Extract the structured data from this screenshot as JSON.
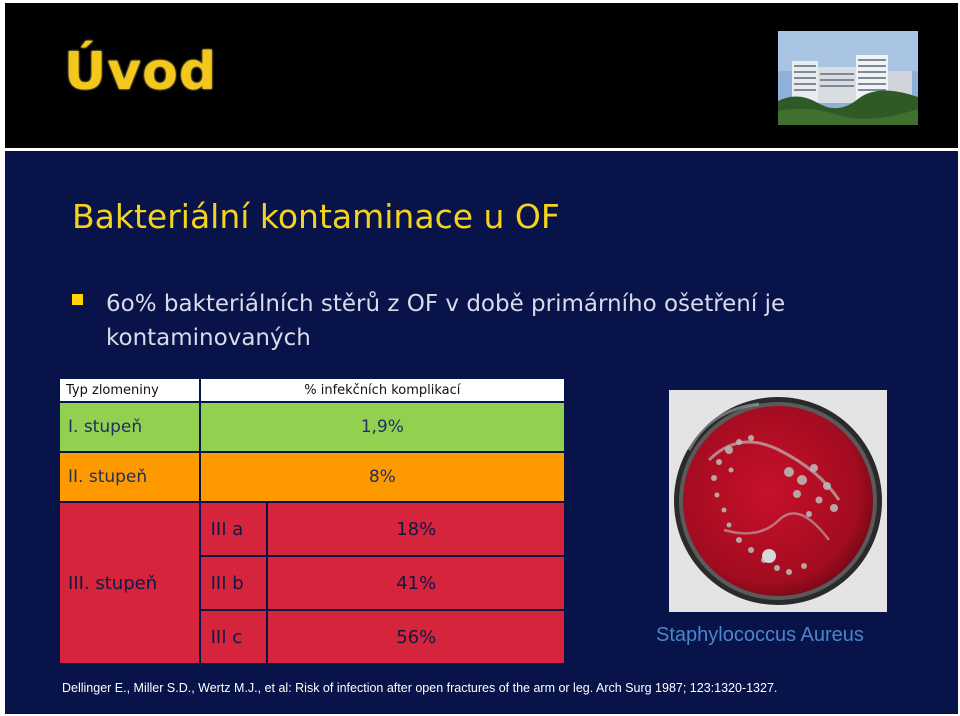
{
  "slide": {
    "title": "Úvod",
    "subtitle": "Bakteriální kontaminace u OF",
    "bullet": "6o% bakteriálních stěrů z OF v době primárního ošetření je kontaminovaných"
  },
  "table": {
    "header": {
      "col1": "Typ zlomeniny",
      "col2": "% infekčních komplikací"
    },
    "grade1": {
      "label": "I. stupeň",
      "value": "1,9%"
    },
    "grade2": {
      "label": "II. stupeň",
      "value": "8%"
    },
    "grade3": {
      "label": "III. stupeň",
      "rows": [
        {
          "sub": "III a",
          "value": "18%"
        },
        {
          "sub": "III b",
          "value": "41%"
        },
        {
          "sub": "III c",
          "value": "56%"
        }
      ]
    }
  },
  "image_caption": "Staphylococcus Aureus",
  "reference": "Dellinger E., Miller S.D., Wertz M.J., et al: Risk of infection after open fractures of the arm or leg. Arch Surg  1987; 123:1320-1327.",
  "colors": {
    "background": "#08134a",
    "title": "#f4c81b",
    "subtitle": "#f4d21f",
    "grade1": "#92d050",
    "grade2": "#ff9900",
    "grade3": "#d5243b",
    "caption": "#4a86c8"
  }
}
